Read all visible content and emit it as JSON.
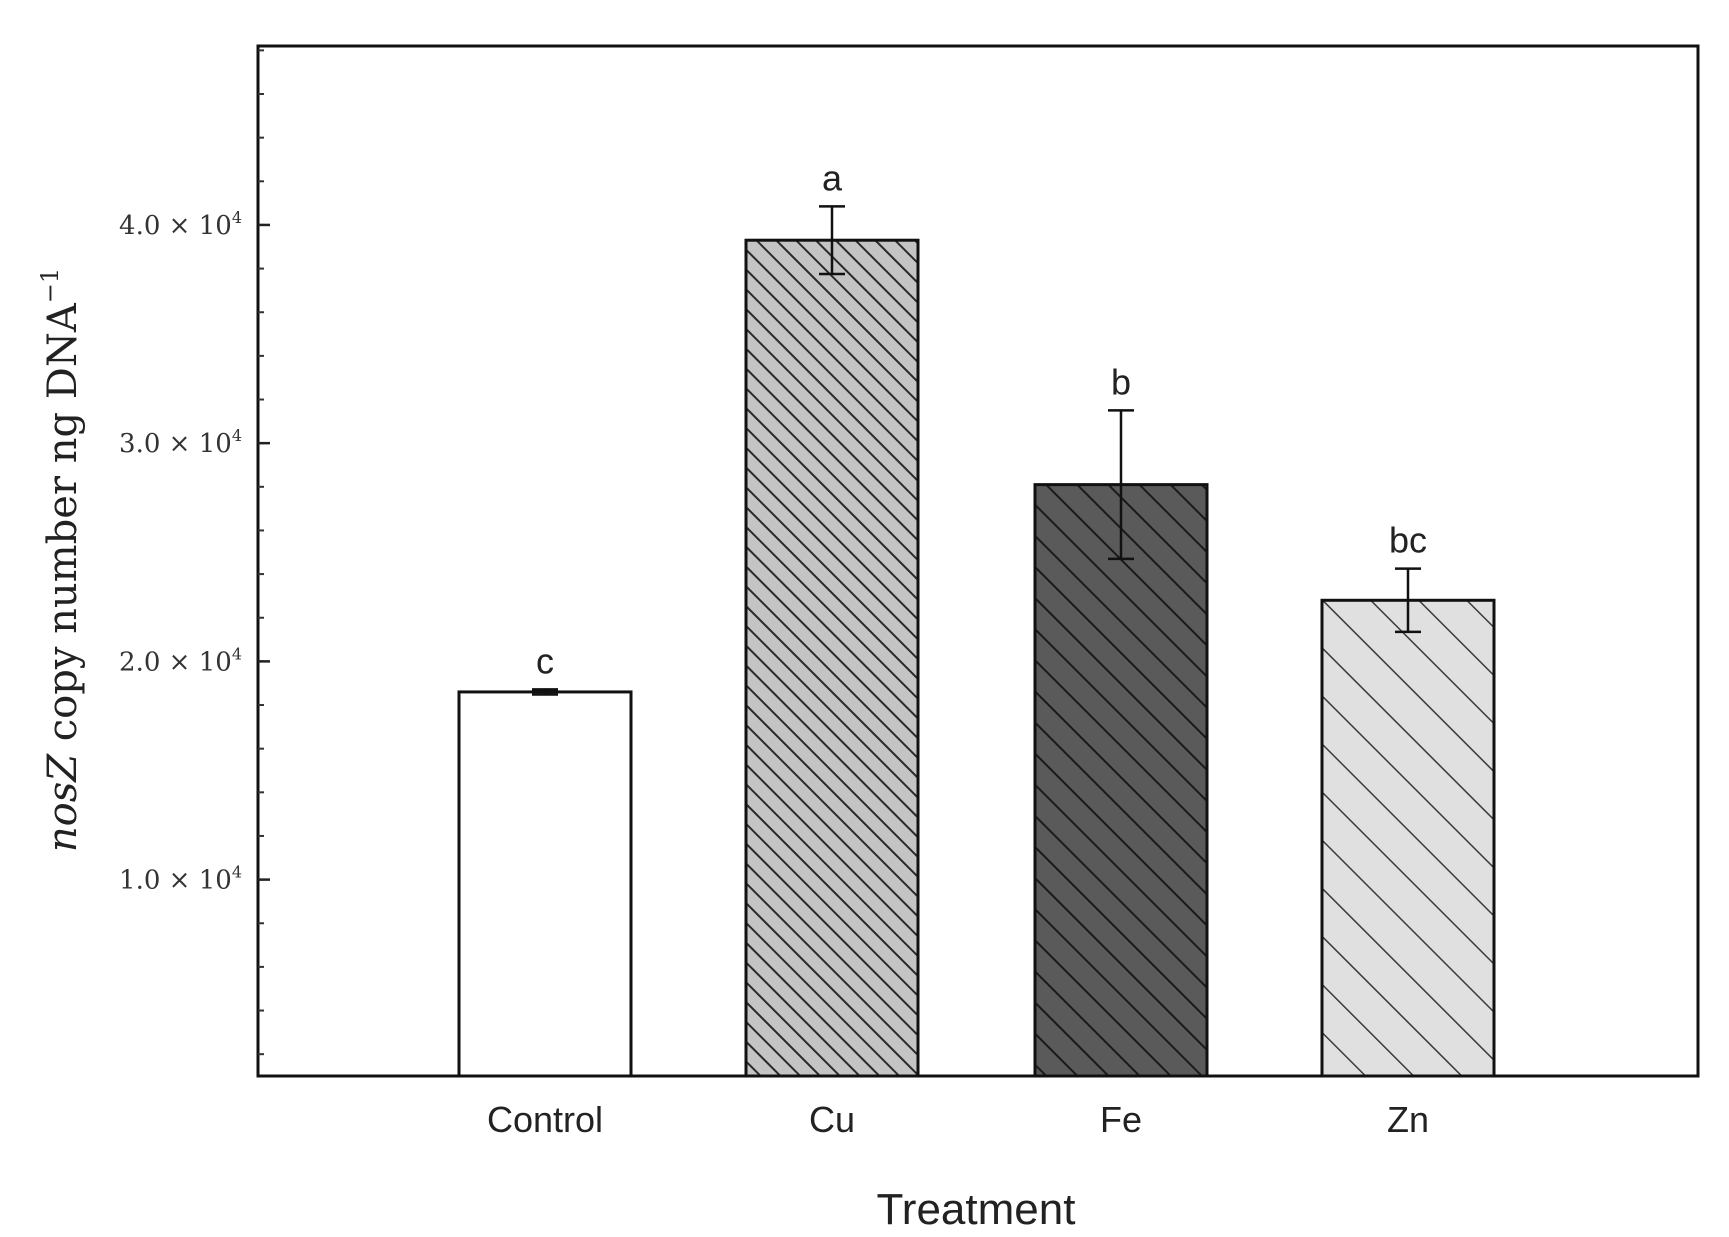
{
  "chart_data": {
    "type": "bar",
    "title": "",
    "xlabel": "Treatment",
    "ylabel_italic": "nosZ",
    "ylabel_rest": " copy number ng DNA",
    "ylabel_sup": "−1",
    "categories": [
      "Control",
      "Cu",
      "Fe",
      "Zn"
    ],
    "values": [
      18600,
      39300,
      28100,
      22800
    ],
    "errors": [
      120,
      1550,
      3400,
      1450
    ],
    "significance": [
      "c",
      "a",
      "b",
      "bc"
    ],
    "ylim": [
      1000,
      48200
    ],
    "yticks": [
      {
        "value": 10000,
        "mantissa": "1.0",
        "sep": " × ",
        "base": "10",
        "exp": "4"
      },
      {
        "value": 20000,
        "mantissa": "2.0",
        "sep": " × ",
        "base": "10",
        "exp": "4"
      },
      {
        "value": 30000,
        "mantissa": "3.0",
        "sep": " × ",
        "base": "10",
        "exp": "4"
      },
      {
        "value": 40000,
        "mantissa": "4.0",
        "sep": " × ",
        "base": "10",
        "exp": "4"
      }
    ],
    "minor_tick_step": 2000,
    "colors": [
      "#ffffff",
      "#bdbdbd",
      "#555555",
      "#e2e2e2"
    ],
    "hatch": [
      "none",
      "dense",
      "medium",
      "wide"
    ]
  }
}
